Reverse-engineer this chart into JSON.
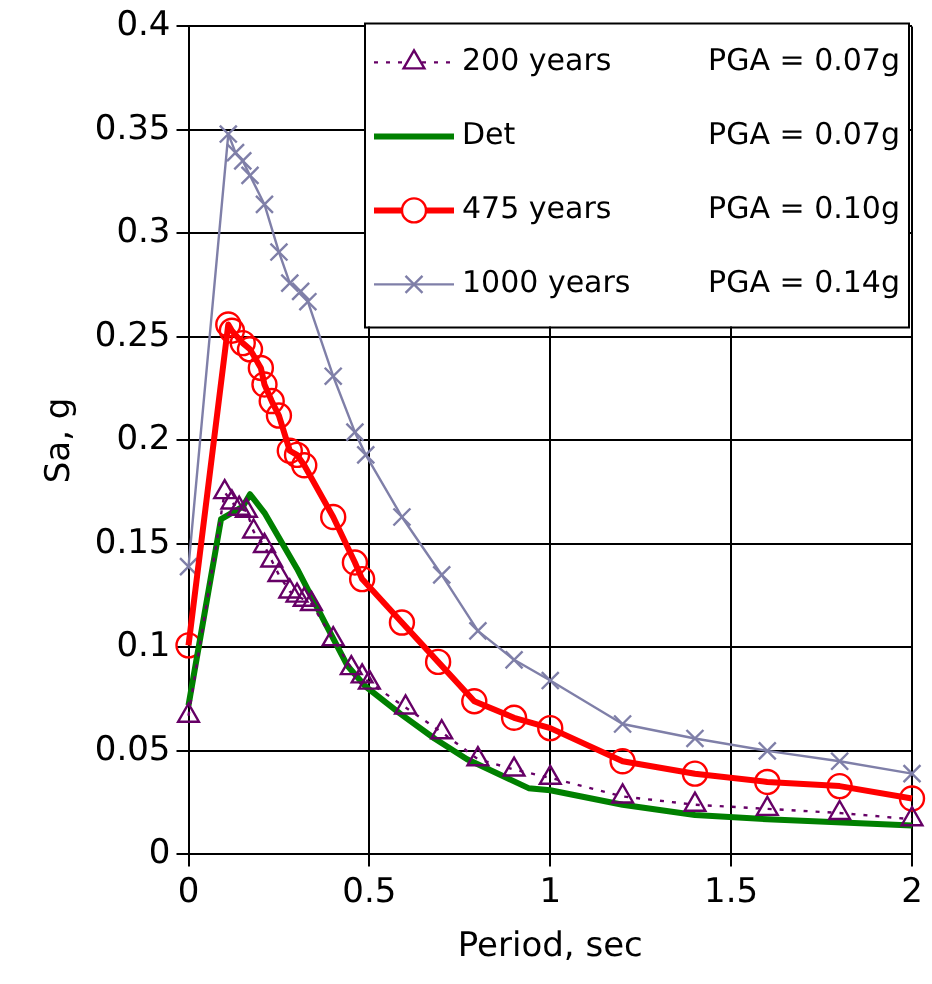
{
  "chart_data": {
    "type": "line",
    "xlabel": "Period, sec",
    "ylabel": "Sa, g",
    "xlim": [
      0,
      2
    ],
    "xticks": [
      0,
      0.5,
      1,
      1.5,
      2
    ],
    "ylim": [
      0,
      0.4
    ],
    "yticks": [
      0,
      0.05,
      0.1,
      0.15,
      0.2,
      0.25,
      0.3,
      0.35,
      0.4
    ],
    "grid": true,
    "legend": "top",
    "annotations": [
      "PGA = 0.07g",
      "PGA = 0.07g",
      "PGA = 0.10g",
      "PGA = 0.14g"
    ],
    "series": [
      {
        "name": "200 years",
        "color": "#660066",
        "marker": "triangle",
        "line_style": "dotted",
        "x": [
          0,
          0.1,
          0.12,
          0.14,
          0.16,
          0.18,
          0.21,
          0.23,
          0.25,
          0.28,
          0.3,
          0.32,
          0.34,
          0.4,
          0.45,
          0.48,
          0.5,
          0.6,
          0.7,
          0.8,
          0.9,
          1.0,
          1.2,
          1.4,
          1.6,
          1.8,
          2.0
        ],
        "values": [
          0.067,
          0.175,
          0.17,
          0.167,
          0.166,
          0.156,
          0.149,
          0.142,
          0.135,
          0.127,
          0.125,
          0.123,
          0.121,
          0.104,
          0.09,
          0.086,
          0.083,
          0.071,
          0.059,
          0.046,
          0.041,
          0.037,
          0.028,
          0.024,
          0.022,
          0.02,
          0.017
        ]
      },
      {
        "name": "Det",
        "color": "#008000",
        "marker": "none",
        "line_style": "solid",
        "x": [
          0,
          0.09,
          0.15,
          0.17,
          0.21,
          0.3,
          0.38,
          0.44,
          0.49,
          0.585,
          0.68,
          0.77,
          0.94,
          1.0,
          1.2,
          1.4,
          1.6,
          2.0
        ],
        "values": [
          0.072,
          0.162,
          0.168,
          0.174,
          0.165,
          0.138,
          0.111,
          0.091,
          0.081,
          0.068,
          0.056,
          0.046,
          0.032,
          0.031,
          0.024,
          0.019,
          0.017,
          0.014
        ]
      },
      {
        "name": "475 years",
        "color": "#ff0000",
        "marker": "circle",
        "line_style": "solid",
        "x": [
          0,
          0.11,
          0.12,
          0.15,
          0.17,
          0.2,
          0.21,
          0.23,
          0.25,
          0.28,
          0.3,
          0.32,
          0.4,
          0.46,
          0.48,
          0.59,
          0.69,
          0.79,
          0.9,
          1.0,
          1.2,
          1.4,
          1.6,
          1.8,
          2.0
        ],
        "values": [
          0.101,
          0.256,
          0.253,
          0.247,
          0.244,
          0.235,
          0.227,
          0.219,
          0.212,
          0.195,
          0.193,
          0.188,
          0.163,
          0.141,
          0.133,
          0.112,
          0.093,
          0.074,
          0.066,
          0.061,
          0.045,
          0.039,
          0.035,
          0.033,
          0.027
        ]
      },
      {
        "name": "1000 years",
        "color": "#7f7fa8",
        "marker": "cross",
        "line_style": "solid",
        "x": [
          0,
          0.11,
          0.13,
          0.15,
          0.17,
          0.21,
          0.25,
          0.28,
          0.31,
          0.33,
          0.4,
          0.46,
          0.49,
          0.59,
          0.7,
          0.8,
          0.9,
          1.0,
          1.2,
          1.4,
          1.6,
          1.8,
          2.0
        ],
        "values": [
          0.139,
          0.348,
          0.339,
          0.335,
          0.328,
          0.314,
          0.291,
          0.276,
          0.272,
          0.267,
          0.231,
          0.204,
          0.193,
          0.163,
          0.135,
          0.108,
          0.094,
          0.084,
          0.063,
          0.056,
          0.05,
          0.045,
          0.039
        ]
      }
    ]
  }
}
